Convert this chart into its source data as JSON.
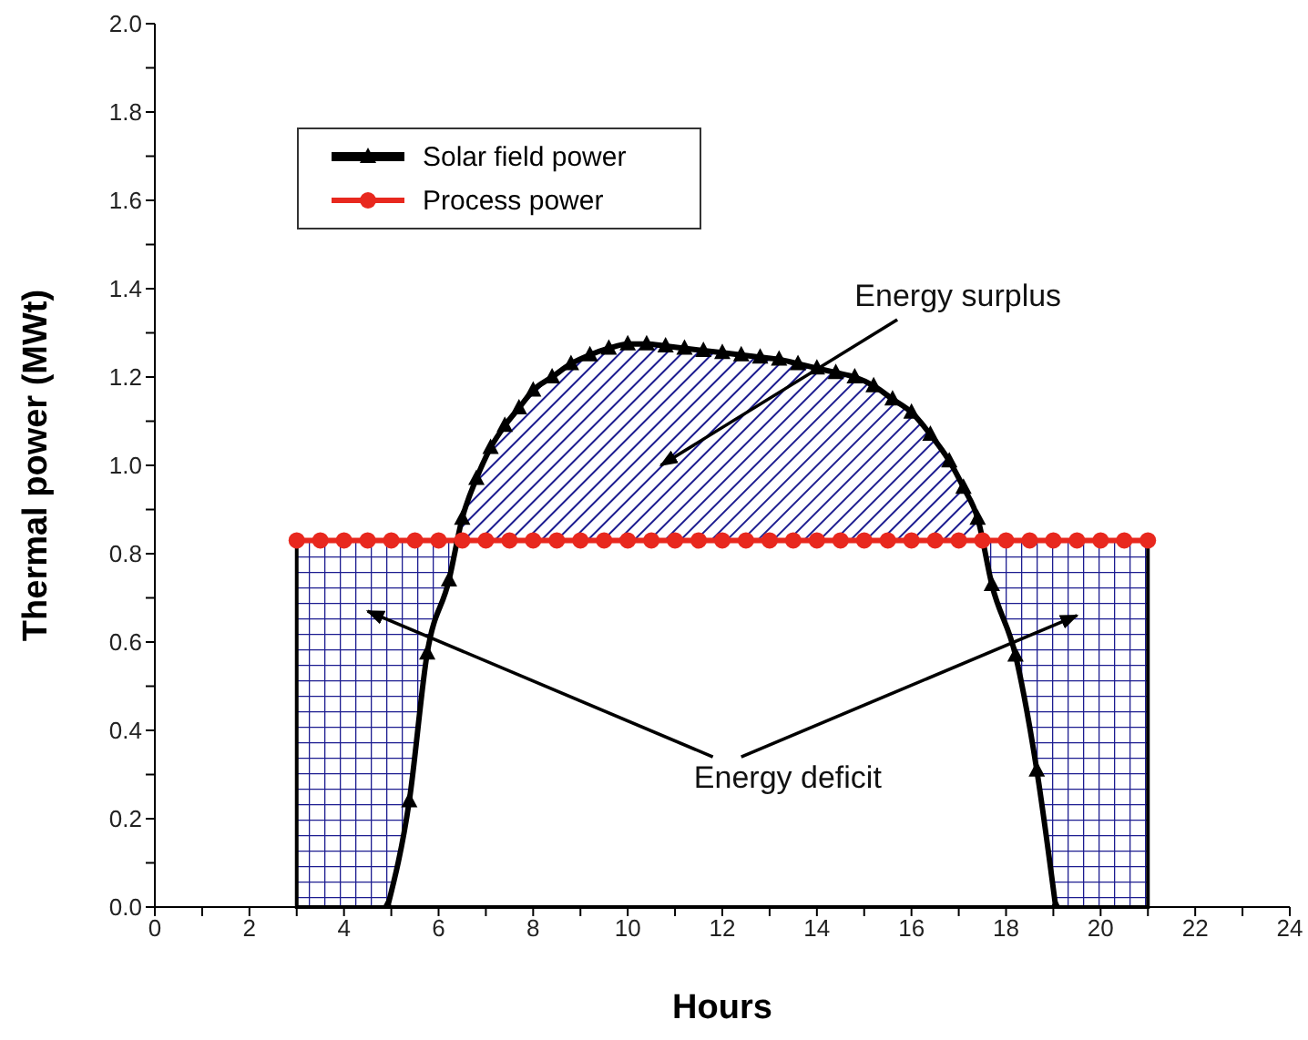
{
  "chart_data": {
    "type": "line",
    "xlabel": "Hours",
    "ylabel": "Thermal power (MWt)",
    "xlim": [
      0,
      24
    ],
    "xticks": [
      0,
      {
        "value": 1,
        "label": null
      },
      2,
      {
        "value": 3,
        "label": null
      },
      4,
      {
        "value": 5,
        "label": null
      },
      6,
      {
        "value": 7,
        "label": null
      },
      8,
      {
        "value": 9,
        "label": null
      },
      10,
      {
        "value": 11,
        "label": null
      },
      12,
      {
        "value": 13,
        "label": null
      },
      14,
      {
        "value": 15,
        "label": null
      },
      16,
      {
        "value": 17,
        "label": null
      },
      18,
      {
        "value": 19,
        "label": null
      },
      20,
      {
        "value": 21,
        "label": null
      },
      22,
      {
        "value": 23,
        "label": null
      },
      24
    ],
    "ylim": [
      0,
      2.0
    ],
    "yticks": [
      {
        "value": 0,
        "label": "0.0"
      },
      {
        "value": 0.1,
        "label": null
      },
      {
        "value": 0.2,
        "label": "0.2"
      },
      {
        "value": 0.3,
        "label": null
      },
      {
        "value": 0.4,
        "label": "0.4"
      },
      {
        "value": 0.5,
        "label": null
      },
      {
        "value": 0.6,
        "label": "0.6"
      },
      {
        "value": 0.7,
        "label": null
      },
      {
        "value": 0.8,
        "label": "0.8"
      },
      {
        "value": 0.9,
        "label": null
      },
      {
        "value": 1.0,
        "label": "1.0"
      },
      {
        "value": 1.1,
        "label": null
      },
      {
        "value": 1.2,
        "label": "1.2"
      },
      {
        "value": 1.3,
        "label": null
      },
      {
        "value": 1.4,
        "label": "1.4"
      },
      {
        "value": 1.5,
        "label": null
      },
      {
        "value": 1.6,
        "label": "1.6"
      },
      {
        "value": 1.7,
        "label": null
      },
      {
        "value": 1.8,
        "label": "1.8"
      },
      {
        "value": 1.9,
        "label": null
      },
      {
        "value": 2.0,
        "label": "2.0"
      }
    ],
    "grid": false,
    "legend": "top left",
    "annotations": [
      "Energy surplus",
      "Energy deficit"
    ],
    "series": [
      {
        "name": "Solar field power",
        "color": "#000000",
        "marker": "triangle",
        "x": [
          4.92,
          5.38,
          5.76,
          6.22,
          6.5,
          6.8,
          7.1,
          7.4,
          7.7,
          8.0,
          8.4,
          8.8,
          9.2,
          9.6,
          10.0,
          10.4,
          10.8,
          11.2,
          11.6,
          12.0,
          12.4,
          12.8,
          13.2,
          13.6,
          14.0,
          14.4,
          14.8,
          15.2,
          15.6,
          16.0,
          16.4,
          16.8,
          17.1,
          17.4,
          17.7,
          18.2,
          18.65,
          19.05
        ],
        "values": [
          0,
          0.24,
          0.575,
          0.74,
          0.88,
          0.97,
          1.04,
          1.09,
          1.13,
          1.17,
          1.2,
          1.23,
          1.25,
          1.265,
          1.275,
          1.275,
          1.27,
          1.265,
          1.26,
          1.255,
          1.25,
          1.245,
          1.24,
          1.23,
          1.22,
          1.21,
          1.2,
          1.18,
          1.15,
          1.12,
          1.07,
          1.01,
          0.95,
          0.88,
          0.73,
          0.57,
          0.31,
          0
        ]
      },
      {
        "name": "Process power",
        "color": "#e8281e",
        "marker": "circle",
        "x": [
          3,
          3.5,
          4,
          4.5,
          5,
          5.5,
          6,
          6.5,
          7,
          7.5,
          8,
          8.5,
          9,
          9.5,
          10,
          10.5,
          11,
          11.5,
          12,
          12.5,
          13,
          13.5,
          14,
          14.5,
          15,
          15.5,
          16,
          16.5,
          17,
          17.5,
          18,
          18.5,
          19,
          19.5,
          20,
          20.5,
          21
        ],
        "values": [
          0.83,
          0.83,
          0.83,
          0.83,
          0.83,
          0.83,
          0.83,
          0.83,
          0.83,
          0.83,
          0.83,
          0.83,
          0.83,
          0.83,
          0.83,
          0.83,
          0.83,
          0.83,
          0.83,
          0.83,
          0.83,
          0.83,
          0.83,
          0.83,
          0.83,
          0.83,
          0.83,
          0.83,
          0.83,
          0.83,
          0.83,
          0.83,
          0.83,
          0.83,
          0.83,
          0.83,
          0.83
        ]
      }
    ]
  }
}
